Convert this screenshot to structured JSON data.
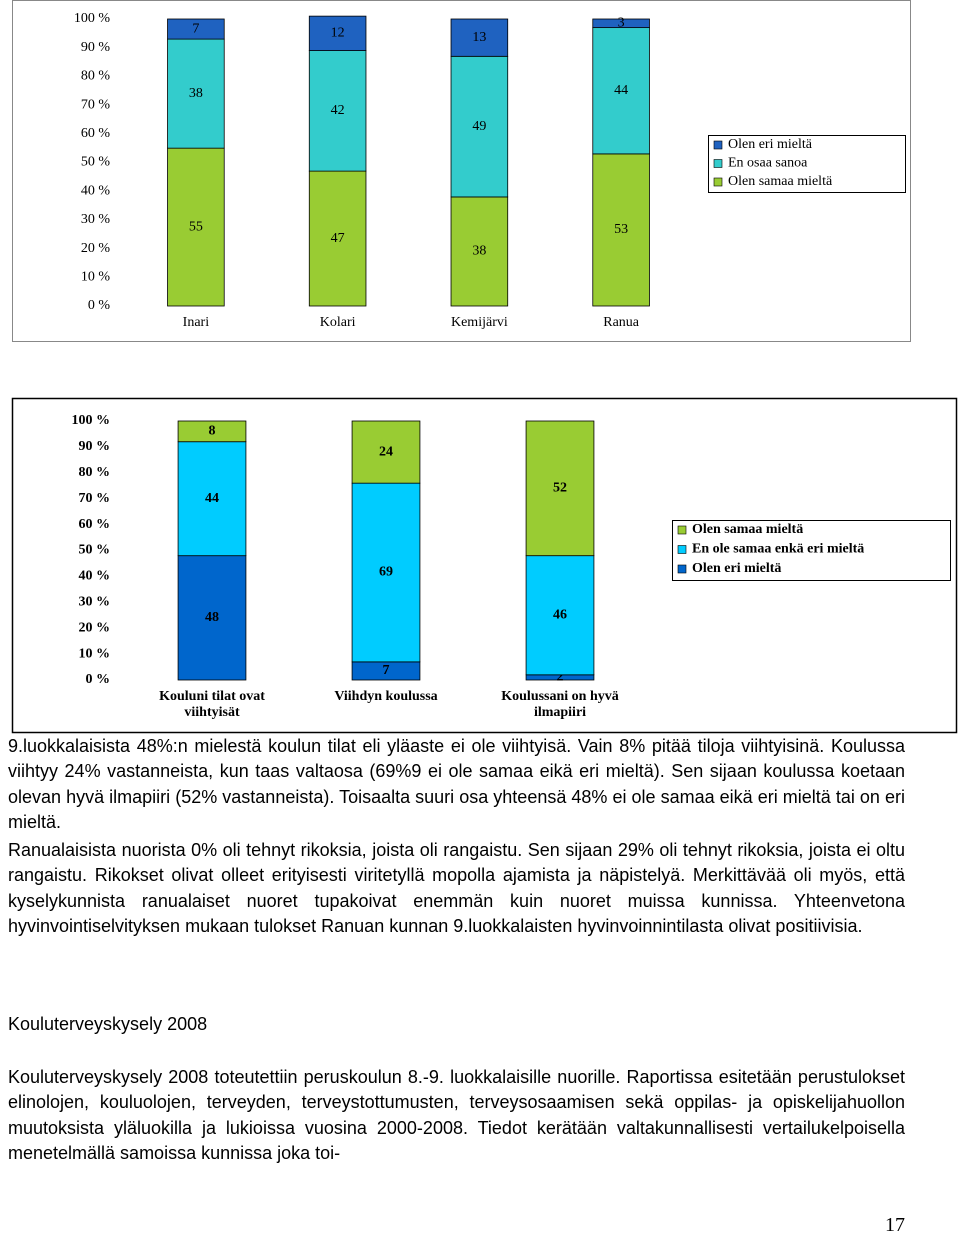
{
  "chart_data": [
    {
      "type": "bar",
      "stacked": true,
      "legend": "right",
      "categories": [
        "Inari",
        "Kolari",
        "Kemijärvi",
        "Ranua"
      ],
      "series": [
        {
          "name": "Olen samaa mieltä",
          "color": "#99cc33",
          "values": [
            55,
            47,
            38,
            53
          ]
        },
        {
          "name": "En osaa sanoa",
          "color": "#33cccc",
          "values": [
            38,
            42,
            49,
            44
          ]
        },
        {
          "name": "Olen eri mieltä",
          "color": "#1f62c0",
          "values": [
            7,
            12,
            13,
            3
          ]
        }
      ],
      "ylim": [
        0,
        100
      ],
      "yticks": [
        {
          "value": 0,
          "label": "0 %"
        },
        {
          "value": 10,
          "label": "10 %"
        },
        {
          "value": 20,
          "label": "20 %"
        },
        {
          "value": 30,
          "label": "30 %"
        },
        {
          "value": 40,
          "label": "40 %"
        },
        {
          "value": 50,
          "label": "50 %"
        },
        {
          "value": 60,
          "label": "60 %"
        },
        {
          "value": 70,
          "label": "70 %"
        },
        {
          "value": 80,
          "label": "80 %"
        },
        {
          "value": 90,
          "label": "90 %"
        },
        {
          "value": 100,
          "label": "100 %"
        }
      ]
    },
    {
      "type": "bar",
      "stacked": true,
      "legend": "right",
      "categories": [
        "Kouluni tilat ovat viihtyisät",
        "Viihdyn koulussa",
        "Koulussani on hyvä ilmapiiri"
      ],
      "series": [
        {
          "name": "Olen eri mieltä",
          "color": "#0066cc",
          "values": [
            48,
            7,
            2
          ]
        },
        {
          "name": "En ole samaa enkä eri mieltä",
          "color": "#00ccff",
          "values": [
            44,
            69,
            46
          ]
        },
        {
          "name": "Olen samaa mieltä",
          "color": "#99cc33",
          "values": [
            8,
            24,
            52
          ]
        }
      ],
      "ylim": [
        0,
        100
      ],
      "yticks": [
        {
          "value": 0,
          "label": "0 %"
        },
        {
          "value": 10,
          "label": "10 %"
        },
        {
          "value": 20,
          "label": "20 %"
        },
        {
          "value": 30,
          "label": "30 %"
        },
        {
          "value": 40,
          "label": "40 %"
        },
        {
          "value": 50,
          "label": "50 %"
        },
        {
          "value": 60,
          "label": "60 %"
        },
        {
          "value": 70,
          "label": "70 %"
        },
        {
          "value": 80,
          "label": "80 %"
        },
        {
          "value": 90,
          "label": "90 %"
        },
        {
          "value": 100,
          "label": "100 %"
        }
      ]
    }
  ],
  "paragraphs": [
    "9.luokkalaisista 48%:n mielestä koulun tilat eli yläaste ei ole viihtyisä. Vain 8% pitää tiloja viihtyisinä. Koulussa viihtyy 24% vastanneista, kun taas valtaosa (69%9 ei ole samaa eikä eri mieltä). Sen sijaan koulussa koetaan olevan hyvä ilmapiiri (52% vastanneista). Toisaalta suuri osa yhteensä 48% ei ole samaa eikä eri mieltä tai on eri mieltä.",
    "Ranualaisista nuorista 0% oli tehnyt rikoksia, joista oli rangaistu. Sen sijaan 29% oli tehnyt rikoksia, joista ei oltu rangaistu. Rikokset olivat olleet erityisesti viritetyllä mopolla ajamista ja näpistelyä. Merkittävää oli myös, että kyselykunnista ranualaiset nuoret tupakoivat enemmän kuin nuoret muissa kunnissa. Yhteenvetona hyvinvointiselvityksen mukaan tulokset Ranuan kunnan 9.luokkalaisten hyvinvoinnintilasta olivat positiivisia."
  ],
  "heading": "Kouluterveyskysely 2008",
  "section_paragraph": "Kouluterveyskysely 2008 toteutettiin peruskoulun 8.-9. luokkalaisille nuorille. Raportissa esitetään perustulokset elinolojen, kouluolojen, terveyden, terveystottumusten, terveysosaamisen sekä oppilas- ja opiskelijahuollon muutoksista yläluokilla ja lukioissa vuosina 2000-2008. Tiedot kerätään valtakunnallisesti vertailukelpoisella menetelmällä samoissa kunnissa joka toi-",
  "page_number": "17"
}
